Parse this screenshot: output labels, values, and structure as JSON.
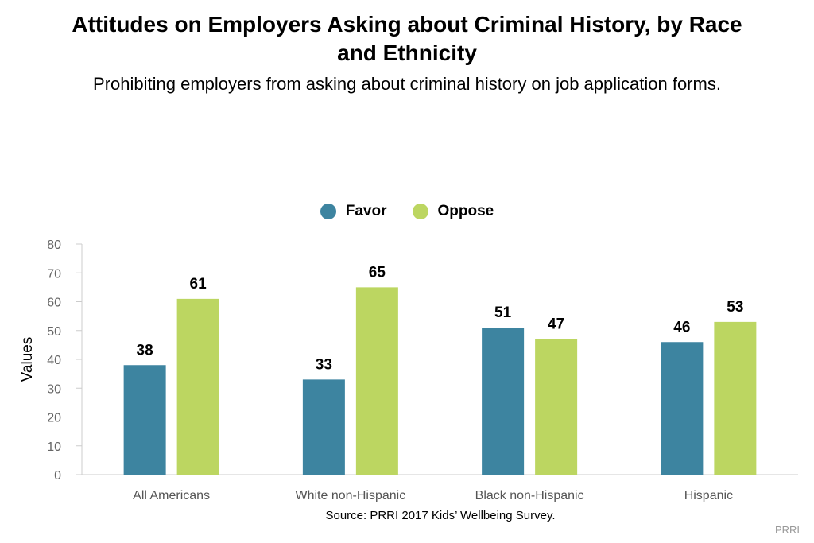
{
  "chart_data": {
    "type": "bar",
    "title": "Attitudes on Employers Asking about Criminal History, by Race and Ethnicity",
    "subtitle": "Prohibiting employers from asking about criminal history on job application forms.",
    "ylabel": "Values",
    "xlabel": "",
    "ylim": [
      0,
      80
    ],
    "yticks": [
      0,
      10,
      20,
      30,
      40,
      50,
      60,
      70,
      80
    ],
    "categories": [
      "All Americans",
      "White non-Hispanic",
      "Black non-Hispanic",
      "Hispanic"
    ],
    "series": [
      {
        "name": "Favor",
        "color": "#3d84a0",
        "values": [
          38,
          33,
          51,
          46
        ]
      },
      {
        "name": "Oppose",
        "color": "#bcd661",
        "values": [
          61,
          65,
          47,
          53
        ]
      }
    ],
    "legend_position": "top-center",
    "grid": false
  },
  "source": "Source: PRRI 2017 Kids’ Wellbeing Survey.",
  "credit": "PRRI"
}
